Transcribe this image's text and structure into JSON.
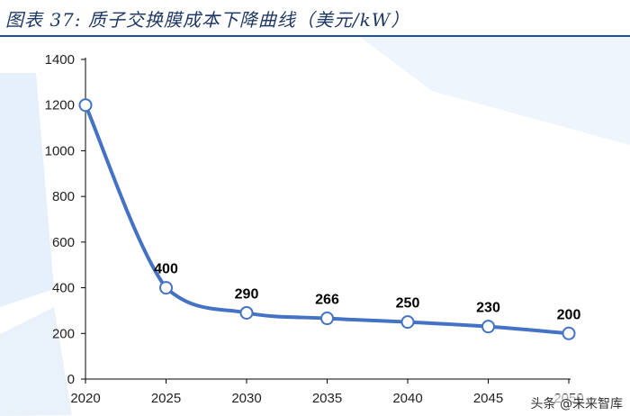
{
  "title": "图表 37: 质子交换膜成本下降曲线（美元/kW）",
  "watermark": "头条 @未来智库",
  "colors": {
    "line": "#4472c4",
    "marker_fill": "#ffffff",
    "axis": "#000000",
    "accent_title": "#1f3864",
    "rule": "#1f4e9c",
    "bg_shape": "#cfe3f5"
  },
  "chart_data": {
    "type": "line",
    "title": "",
    "xlabel": "",
    "ylabel": "",
    "x": [
      2020,
      2025,
      2030,
      2035,
      2040,
      2045,
      2050
    ],
    "series": [
      {
        "values": [
          1200,
          400,
          290,
          266,
          250,
          230,
          200
        ]
      }
    ],
    "data_labels": [
      "",
      "400",
      "290",
      "266",
      "250",
      "230",
      "200"
    ],
    "x_ticks": [
      "2020",
      "2025",
      "2030",
      "2035",
      "2040",
      "2045",
      "2050"
    ],
    "y_ticks": [
      "0",
      "200",
      "400",
      "600",
      "800",
      "1000",
      "1200",
      "1400"
    ],
    "ylim": [
      0,
      1400
    ],
    "grid": false,
    "legend": "none"
  }
}
